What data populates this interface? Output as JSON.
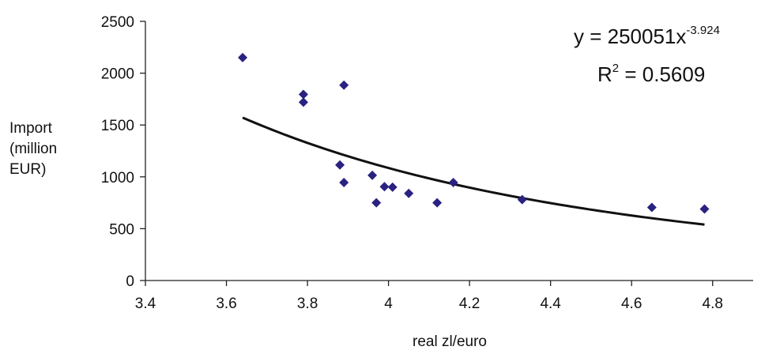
{
  "colors": {
    "marker": "#2a2280",
    "trendline": "#111111",
    "axis": "#222222",
    "background": "#ffffff"
  },
  "chart_data": {
    "type": "scatter",
    "title": "",
    "xlabel": "real zl/euro",
    "ylabel_lines": [
      "Import",
      "(million",
      "EUR)"
    ],
    "xlim": [
      3.4,
      4.9
    ],
    "ylim": [
      0,
      2500
    ],
    "x_ticks": [
      3.4,
      3.6,
      3.8,
      4,
      4.2,
      4.4,
      4.6,
      4.8
    ],
    "x_tick_labels": [
      "3.4",
      "3.6",
      "3.8",
      "4",
      "4.2",
      "4.4",
      "4.6",
      "4.8"
    ],
    "y_ticks": [
      0,
      500,
      1000,
      1500,
      2000,
      2500
    ],
    "y_tick_labels": [
      "0",
      "500",
      "1000",
      "1500",
      "2000",
      "2500"
    ],
    "grid": false,
    "legend": false,
    "marker_shape": "diamond",
    "series": [
      {
        "points": [
          {
            "x": 3.64,
            "y": 2150
          },
          {
            "x": 3.79,
            "y": 1795
          },
          {
            "x": 3.79,
            "y": 1720
          },
          {
            "x": 3.89,
            "y": 1885
          },
          {
            "x": 3.88,
            "y": 1115
          },
          {
            "x": 3.89,
            "y": 945
          },
          {
            "x": 3.96,
            "y": 1015
          },
          {
            "x": 3.97,
            "y": 750
          },
          {
            "x": 3.99,
            "y": 905
          },
          {
            "x": 4.01,
            "y": 900
          },
          {
            "x": 4.05,
            "y": 840
          },
          {
            "x": 4.12,
            "y": 750
          },
          {
            "x": 4.16,
            "y": 945
          },
          {
            "x": 4.33,
            "y": 780
          },
          {
            "x": 4.65,
            "y": 705
          },
          {
            "x": 4.78,
            "y": 690
          }
        ]
      }
    ],
    "trendline": {
      "type": "power",
      "coefficient": 250051,
      "exponent": -3.924,
      "x_range": [
        3.64,
        4.78
      ],
      "equation_main": "y = 250051x",
      "equation_exponent": "-3.924",
      "r2_prefix": "R",
      "r2_exponent": "2",
      "r2_value": " = 0.5609"
    }
  }
}
